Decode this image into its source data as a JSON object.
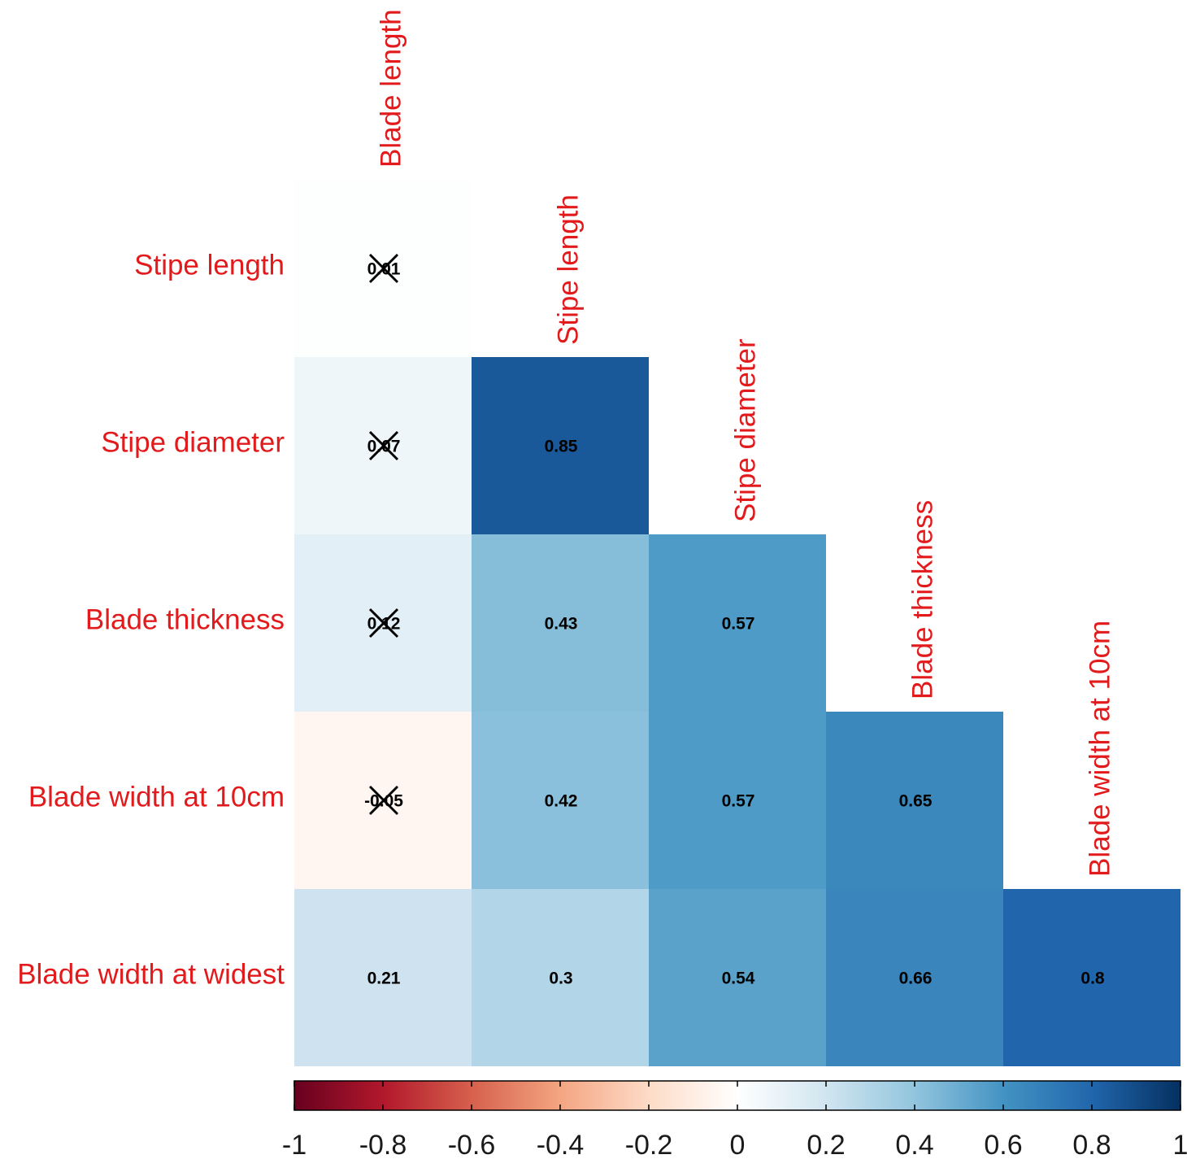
{
  "chart_data": {
    "type": "heatmap",
    "subtype": "correlation-lower-triangle",
    "row_labels": [
      "Stipe length",
      "Stipe diameter",
      "Blade thickness",
      "Blade width at 10cm",
      "Blade width at widest"
    ],
    "column_labels": [
      "Blade length",
      "Stipe length",
      "Stipe diameter",
      "Blade thickness",
      "Blade width at 10cm"
    ],
    "cells": [
      {
        "row": 0,
        "col": 0,
        "value": 0.01,
        "label": "0.01",
        "crossed": true
      },
      {
        "row": 1,
        "col": 0,
        "value": 0.07,
        "label": "0.07",
        "crossed": true
      },
      {
        "row": 1,
        "col": 1,
        "value": 0.85,
        "label": "0.85",
        "crossed": false
      },
      {
        "row": 2,
        "col": 0,
        "value": 0.12,
        "label": "0.12",
        "crossed": true
      },
      {
        "row": 2,
        "col": 1,
        "value": 0.43,
        "label": "0.43",
        "crossed": false
      },
      {
        "row": 2,
        "col": 2,
        "value": 0.57,
        "label": "0.57",
        "crossed": false
      },
      {
        "row": 3,
        "col": 0,
        "value": -0.05,
        "label": "-0.05",
        "crossed": true
      },
      {
        "row": 3,
        "col": 1,
        "value": 0.42,
        "label": "0.42",
        "crossed": false
      },
      {
        "row": 3,
        "col": 2,
        "value": 0.57,
        "label": "0.57",
        "crossed": false
      },
      {
        "row": 3,
        "col": 3,
        "value": 0.65,
        "label": "0.65",
        "crossed": false
      },
      {
        "row": 4,
        "col": 0,
        "value": 0.21,
        "label": "0.21",
        "crossed": false
      },
      {
        "row": 4,
        "col": 1,
        "value": 0.3,
        "label": "0.3",
        "crossed": false
      },
      {
        "row": 4,
        "col": 2,
        "value": 0.54,
        "label": "0.54",
        "crossed": false
      },
      {
        "row": 4,
        "col": 3,
        "value": 0.66,
        "label": "0.66",
        "crossed": false
      },
      {
        "row": 4,
        "col": 4,
        "value": 0.8,
        "label": "0.8",
        "crossed": false
      }
    ],
    "colorbar": {
      "range": [
        -1,
        1
      ],
      "ticks": [
        -1,
        -0.8,
        -0.6,
        -0.4,
        -0.2,
        0,
        0.2,
        0.4,
        0.6,
        0.8,
        1
      ],
      "tick_labels": [
        "-1",
        "-0.8",
        "-0.6",
        "-0.4",
        "-0.2",
        "0",
        "0.2",
        "0.4",
        "0.6",
        "0.8",
        "1"
      ],
      "placement": "bottom"
    },
    "colors": {
      "label_text": "#e31a1c",
      "cell_text": "#000000",
      "cross": "#000000",
      "scale": [
        "#67001f",
        "#b2182b",
        "#d6604d",
        "#f4a582",
        "#fddbc7",
        "#ffffff",
        "#d1e5f0",
        "#92c5de",
        "#4393c3",
        "#2166ac",
        "#053061"
      ]
    }
  }
}
